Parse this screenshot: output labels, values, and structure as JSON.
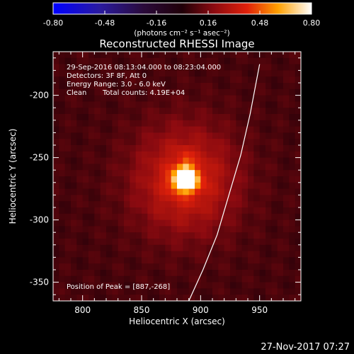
{
  "chart_data": {
    "type": "heatmap",
    "title": "Reconstructed RHESSI Image",
    "xlabel": "Heliocentric X (arcsec)",
    "ylabel": "Heliocentric Y (arcsec)",
    "xlim": [
      775,
      985
    ],
    "ylim": [
      -365,
      -165
    ],
    "x_ticks": [
      800,
      850,
      900,
      950
    ],
    "y_ticks": [
      -200,
      -250,
      -300,
      -350
    ],
    "colorbar": {
      "range": [
        -0.8,
        0.8
      ],
      "ticks": [
        "-0.80",
        "-0.48",
        "-0.16",
        "0.16",
        "0.48",
        "0.80"
      ],
      "label": "(photons cm⁻² s⁻¹ asec⁻²)",
      "colormap": "blue-black-red-yellow-white"
    },
    "source": {
      "peak_x": 887,
      "peak_y": -268,
      "peak_value": 0.8,
      "sigma_x": 7,
      "sigma_y": 6,
      "halo_sigma": 30,
      "halo_value": 0.32,
      "background_value": 0.07
    },
    "limb_curve": [
      [
        890,
        -365
      ],
      [
        902,
        -340
      ],
      [
        914,
        -312
      ],
      [
        924,
        -280
      ],
      [
        934,
        -248
      ],
      [
        942,
        -215
      ],
      [
        950,
        -175
      ]
    ],
    "annotations": {
      "time_range": "29-Sep-2016 08:13:04.000 to 08:23:04.000",
      "detectors": "Detectors: 3F 8F, Att 0",
      "energy": "Energy Range: 3.0 - 6.0 keV",
      "clean": "Clean",
      "counts": "Total counts: 4.19E+04",
      "peak_position": "Position of Peak = [887,-268]"
    }
  },
  "footer": {
    "timestamp": "27-Nov-2017 07:27"
  }
}
